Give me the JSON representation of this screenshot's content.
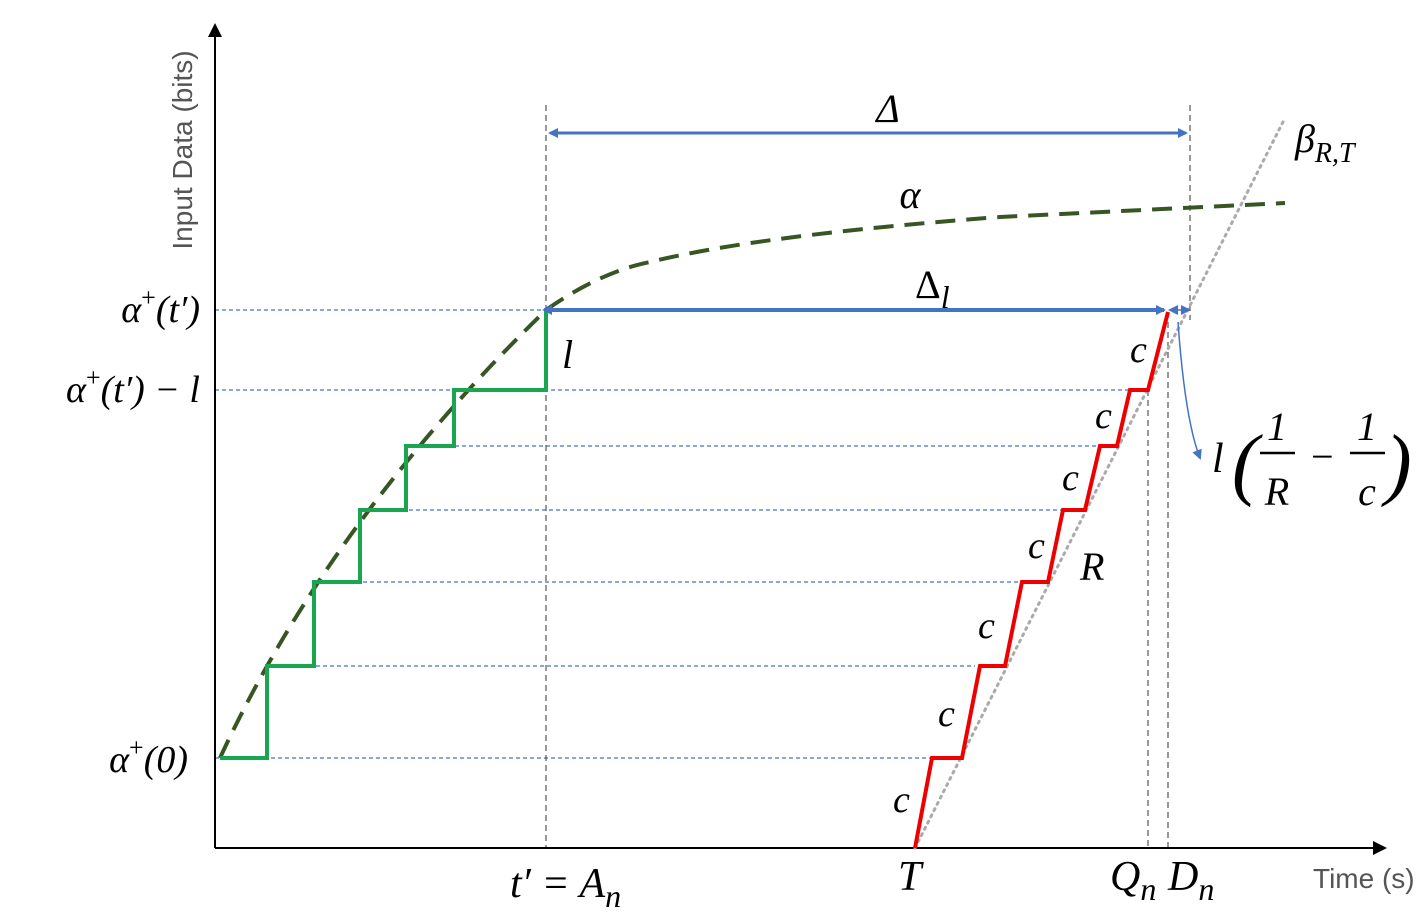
{
  "axes": {
    "y_label": "Input Data (bits)",
    "x_label": "Time (s)"
  },
  "annotations": {
    "delta": "Δ",
    "delta_l": {
      "base": "Δ",
      "sub": "l"
    },
    "alpha": "α",
    "beta": {
      "base": "β",
      "sub": "R,T"
    },
    "l": "l",
    "R": "R"
  },
  "y_labels": [
    {
      "base": "α",
      "sup": "+",
      "arg": "(t′)"
    },
    {
      "base": "α",
      "sup": "+",
      "arg": "(t′) − l"
    },
    {
      "base": "α",
      "sup": "+",
      "arg": "(0)"
    }
  ],
  "x_labels": [
    {
      "base": "t′ = A",
      "sub": "n"
    },
    {
      "base": "T"
    },
    {
      "base": "Q",
      "sub": "n"
    },
    {
      "base": "D",
      "sub": "n"
    }
  ],
  "step_labels": [
    "c",
    "c",
    "c",
    "c",
    "c",
    "c",
    "c"
  ],
  "formula": {
    "l": "l",
    "open": "(",
    "num1": "1",
    "den1": "R",
    "minus": "−",
    "num2": "1",
    "den2": "c",
    "close": ")"
  }
}
